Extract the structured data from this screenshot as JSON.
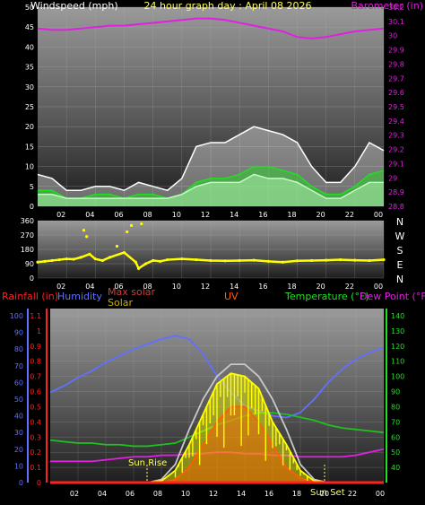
{
  "chart_data": [
    {
      "type": "line",
      "panel": "wind",
      "title": "24 hour graph day : April 08 2026",
      "ylabel_left": "Windspeed (mph)",
      "ylabel_right": "Barometer (in)",
      "x_ticks": [
        "02",
        "04",
        "06",
        "08",
        "10",
        "12",
        "14",
        "16",
        "18",
        "20",
        "22",
        "00"
      ],
      "ylim_left": [
        0,
        50
      ],
      "y_ticks_left": [
        "0",
        "5",
        "10",
        "15",
        "20",
        "25",
        "30",
        "35",
        "40",
        "45",
        "50"
      ],
      "ylim_right": [
        28.8,
        30.2
      ],
      "y_ticks_right": [
        "28.8",
        "28.9",
        "29",
        "29.1",
        "29.2",
        "29.3",
        "29.4",
        "29.5",
        "29.6",
        "29.7",
        "29.8",
        "29.9",
        "30",
        "30.1",
        "30.2"
      ],
      "x_hours": [
        0,
        1,
        2,
        3,
        4,
        5,
        6,
        7,
        8,
        9,
        10,
        11,
        12,
        13,
        14,
        15,
        16,
        17,
        18,
        19,
        20,
        21,
        22,
        23,
        24
      ],
      "series": [
        {
          "name": "Barometer",
          "axis": "right",
          "color": "#e020e0",
          "values": [
            30.05,
            30.04,
            30.04,
            30.05,
            30.06,
            30.07,
            30.07,
            30.08,
            30.09,
            30.1,
            30.11,
            30.12,
            30.12,
            30.11,
            30.09,
            30.07,
            30.05,
            30.03,
            29.99,
            29.98,
            29.99,
            30.01,
            30.03,
            30.04,
            30.05
          ]
        },
        {
          "name": "Gust",
          "axis": "left",
          "color": "#ffffff",
          "values": [
            8,
            7,
            4,
            4,
            5,
            5,
            4,
            6,
            5,
            4,
            7,
            15,
            16,
            16,
            18,
            20,
            19,
            18,
            16,
            10,
            6,
            6,
            10,
            16,
            14
          ]
        },
        {
          "name": "Average",
          "axis": "left",
          "color": "#20e020",
          "values": [
            4,
            4,
            2,
            2,
            3,
            3,
            2,
            3,
            3,
            2,
            3,
            6,
            7,
            7,
            8,
            10,
            10,
            9,
            8,
            5,
            3,
            3,
            5,
            8,
            9
          ]
        },
        {
          "name": "Speed",
          "axis": "left",
          "color": "#c0ffc0",
          "values": [
            3,
            3,
            2,
            2,
            2,
            2,
            2,
            2,
            2,
            2,
            3,
            5,
            6,
            6,
            6,
            8,
            7,
            7,
            6,
            4,
            2,
            2,
            4,
            6,
            6
          ]
        }
      ]
    },
    {
      "type": "scatter",
      "panel": "direction",
      "ylabel_right": [
        "N",
        "W",
        "S",
        "E",
        "N"
      ],
      "ylim": [
        0,
        360
      ],
      "y_ticks": [
        "0",
        "90",
        "180",
        "270",
        "360"
      ],
      "x_ticks": [
        "02",
        "04",
        "06",
        "08",
        "10",
        "12",
        "14",
        "16",
        "18",
        "20",
        "22",
        "00"
      ],
      "series": [
        {
          "name": "Wind direction",
          "color": "#ffff00",
          "x": [
            0,
            0.5,
            1,
            1.5,
            2,
            2.5,
            3,
            3.2,
            3.4,
            3.6,
            4,
            4.5,
            5,
            5.5,
            6,
            6.2,
            6.5,
            6.8,
            7,
            7.2,
            7.5,
            8,
            8.5,
            9,
            10,
            11,
            12,
            13,
            14,
            15,
            16,
            17,
            18,
            19,
            20,
            21,
            22,
            23,
            24
          ],
          "y": [
            100,
            105,
            110,
            115,
            120,
            118,
            130,
            300,
            260,
            150,
            120,
            110,
            130,
            200,
            160,
            290,
            330,
            100,
            60,
            340,
            90,
            110,
            105,
            115,
            120,
            115,
            110,
            108,
            110,
            112,
            105,
            100,
            108,
            110,
            112,
            115,
            112,
            110,
            115
          ]
        }
      ]
    },
    {
      "type": "line",
      "panel": "weather",
      "legend": [
        "Rainfall (in)",
        "Humidity",
        "Max solar",
        "Solar",
        "UV",
        "Temperature (°F)",
        "Dew Point (°F)"
      ],
      "ylim_rain": [
        0,
        1.1
      ],
      "y_ticks_rain": [
        "0",
        "0.1",
        "0.2",
        "0.3",
        "0.4",
        "0.5",
        "0.6",
        "0.7",
        "0.8",
        "0.9",
        "1",
        "1.1"
      ],
      "ylim_humidity": [
        0,
        100
      ],
      "y_ticks_humidity": [
        "0",
        "10",
        "20",
        "30",
        "40",
        "50",
        "60",
        "70",
        "80",
        "90",
        "100"
      ],
      "ylim_temp": [
        30,
        140
      ],
      "y_ticks_temp": [
        "40",
        "50",
        "60",
        "70",
        "80",
        "90",
        "100",
        "110",
        "120",
        "130",
        "140"
      ],
      "x_ticks": [
        "02",
        "04",
        "06",
        "08",
        "10",
        "12",
        "14",
        "16",
        "18",
        "20",
        "22",
        "00"
      ],
      "annotations": [
        "Sun Rise",
        "Sun Set"
      ],
      "x_hours": [
        0,
        1,
        2,
        3,
        4,
        5,
        6,
        7,
        8,
        9,
        10,
        11,
        12,
        13,
        14,
        15,
        16,
        17,
        18,
        19,
        20,
        21,
        22,
        23,
        24
      ],
      "series": [
        {
          "name": "Humidity",
          "axis": "humidity",
          "color": "#6070ff",
          "values": [
            54,
            58,
            63,
            67,
            72,
            76,
            80,
            83,
            86,
            88,
            86,
            77,
            64,
            54,
            46,
            43,
            40,
            39,
            42,
            50,
            60,
            68,
            74,
            78,
            81
          ]
        },
        {
          "name": "Temperature (°F)",
          "axis": "temp",
          "color": "#20c020",
          "values": [
            58,
            57,
            56,
            56,
            55,
            55,
            54,
            54,
            55,
            56,
            60,
            64,
            68,
            71,
            74,
            76,
            76,
            75,
            73,
            71,
            68,
            66,
            65,
            64,
            63
          ]
        },
        {
          "name": "Dew Point (°F)",
          "axis": "temp",
          "color": "#e020e0",
          "values": [
            44,
            44,
            44,
            44,
            45,
            46,
            47,
            47,
            48,
            48,
            49,
            49,
            50,
            50,
            49,
            49,
            48,
            48,
            47,
            47,
            47,
            47,
            48,
            50,
            52
          ]
        },
        {
          "name": "Max solar",
          "axis": "rain",
          "color": "#c8c8c8",
          "values": [
            0,
            0,
            0,
            0,
            0,
            0,
            0,
            0,
            0.02,
            0.12,
            0.35,
            0.55,
            0.7,
            0.78,
            0.78,
            0.7,
            0.55,
            0.35,
            0.12,
            0.02,
            0,
            0,
            0,
            0,
            0
          ]
        },
        {
          "name": "Solar",
          "axis": "rain",
          "color": "#ffff00",
          "values": [
            0,
            0,
            0,
            0,
            0,
            0,
            0,
            0,
            0.01,
            0.08,
            0.25,
            0.45,
            0.65,
            0.72,
            0.7,
            0.62,
            0.4,
            0.25,
            0.08,
            0.01,
            0,
            0,
            0,
            0,
            0
          ]
        },
        {
          "name": "UV",
          "axis": "rain",
          "color": "#ff6000",
          "values": [
            0,
            0,
            0,
            0,
            0,
            0,
            0,
            0,
            0,
            0.02,
            0.1,
            0.25,
            0.4,
            0.5,
            0.5,
            0.4,
            0.25,
            0.1,
            0.03,
            0,
            0,
            0,
            0,
            0,
            0
          ]
        },
        {
          "name": "Rainfall (in)",
          "axis": "rain",
          "color": "#ff2020",
          "values": [
            0,
            0,
            0,
            0,
            0,
            0,
            0,
            0,
            0,
            0,
            0,
            0,
            0,
            0,
            0,
            0,
            0,
            0,
            0,
            0,
            0,
            0,
            0,
            0,
            0
          ]
        }
      ]
    }
  ]
}
